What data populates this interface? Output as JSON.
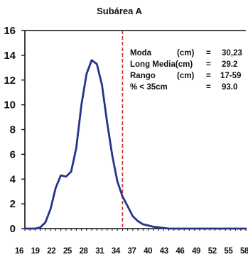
{
  "chart_data": {
    "type": "line",
    "title": "Subárea A",
    "xlabel": "",
    "ylabel": "",
    "xlim": [
      16,
      59
    ],
    "ylim": [
      0,
      16
    ],
    "y_ticks": [
      "0",
      "2",
      "4",
      "6",
      "8",
      "10",
      "12",
      "14",
      "16"
    ],
    "x_ticks": [
      "16",
      "19",
      "22",
      "25",
      "28",
      "31",
      "34",
      "37",
      "40",
      "43",
      "46",
      "49",
      "52",
      "55",
      "58"
    ],
    "grid": false,
    "line_color": "#24348c",
    "cutoff": {
      "x": 35,
      "color": "#d42a2a"
    },
    "series": [
      {
        "values": [
          [
            16,
            0
          ],
          [
            17,
            0
          ],
          [
            18,
            0
          ],
          [
            19,
            0.1
          ],
          [
            20,
            0.5
          ],
          [
            21,
            1.6
          ],
          [
            22,
            3.3
          ],
          [
            23,
            4.3
          ],
          [
            24,
            4.2
          ],
          [
            25,
            4.6
          ],
          [
            26,
            6.5
          ],
          [
            27,
            10.0
          ],
          [
            28,
            12.5
          ],
          [
            29,
            13.6
          ],
          [
            30,
            13.3
          ],
          [
            31,
            11.6
          ],
          [
            32,
            8.6
          ],
          [
            33,
            5.9
          ],
          [
            34,
            3.8
          ],
          [
            35,
            2.6
          ],
          [
            36,
            1.8
          ],
          [
            37,
            1.0
          ],
          [
            38,
            0.6
          ],
          [
            39,
            0.35
          ],
          [
            40,
            0.25
          ],
          [
            41,
            0.15
          ],
          [
            42,
            0.1
          ],
          [
            43,
            0.05
          ],
          [
            44,
            0
          ],
          [
            46,
            0
          ],
          [
            50,
            0
          ],
          [
            55,
            0
          ],
          [
            59,
            0
          ]
        ]
      }
    ],
    "annotations": [
      {
        "label": "Moda",
        "unit": "(cm)",
        "eq": "=",
        "value": "30,23"
      },
      {
        "label": "Long Media(cm)",
        "unit": "",
        "eq": "=",
        "value": "29.2"
      },
      {
        "label": "Rango",
        "unit": "(cm)",
        "eq": "=",
        "value": "17-59"
      },
      {
        "label": "% < 35cm",
        "unit": "",
        "eq": "=",
        "value": "93.0"
      }
    ]
  }
}
